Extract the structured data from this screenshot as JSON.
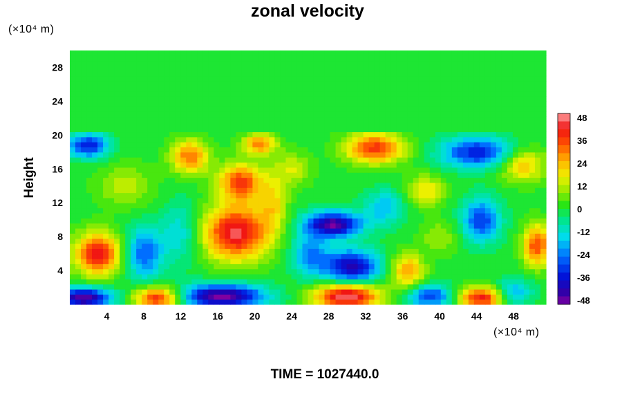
{
  "chart_data": {
    "type": "heatmap",
    "title": "zonal velocity",
    "ylabel": "Height",
    "x_unit": "(×10⁴ m)",
    "y_unit": "(×10⁴ m)",
    "footer": "TIME = 1027440.0",
    "xlim": [
      0,
      51.5
    ],
    "ylim": [
      0,
      30
    ],
    "x_ticks": [
      4,
      8,
      12,
      16,
      20,
      24,
      28,
      32,
      36,
      40,
      44,
      48
    ],
    "y_ticks": [
      4,
      8,
      12,
      16,
      20,
      24,
      28
    ],
    "colorbar": {
      "min": -48,
      "max": 48,
      "ticks": [
        48,
        36,
        24,
        12,
        0,
        -12,
        -24,
        -36,
        -48
      ]
    },
    "background_value": 0,
    "perturbed_region_top": 20.5,
    "features": [
      {
        "x": 2.0,
        "y": 18.8,
        "value": -34,
        "rx": 2.2,
        "ry": 1.4
      },
      {
        "x": 3.0,
        "y": 6.0,
        "value": 40,
        "rx": 2.5,
        "ry": 2.5
      },
      {
        "x": 8.0,
        "y": 6.0,
        "value": -26,
        "rx": 2.0,
        "ry": 3.0
      },
      {
        "x": 1.5,
        "y": 0.8,
        "value": -46,
        "rx": 3.0,
        "ry": 1.2
      },
      {
        "x": 9.5,
        "y": 0.8,
        "value": 40,
        "rx": 2.5,
        "ry": 1.3
      },
      {
        "x": 16.5,
        "y": 1.0,
        "value": -48,
        "rx": 4.5,
        "ry": 1.4
      },
      {
        "x": 18.0,
        "y": 8.5,
        "value": 44,
        "rx": 3.6,
        "ry": 3.2
      },
      {
        "x": 18.5,
        "y": 14.5,
        "value": 34,
        "rx": 2.5,
        "ry": 2.2
      },
      {
        "x": 13.0,
        "y": 17.5,
        "value": 30,
        "rx": 2.0,
        "ry": 2.0
      },
      {
        "x": 20.5,
        "y": 19.0,
        "value": 30,
        "rx": 1.8,
        "ry": 1.2
      },
      {
        "x": 12.0,
        "y": 8.5,
        "value": -14,
        "rx": 2.2,
        "ry": 3.5
      },
      {
        "x": 28.5,
        "y": 9.5,
        "value": -46,
        "rx": 3.0,
        "ry": 1.5
      },
      {
        "x": 30.5,
        "y": 4.5,
        "value": -40,
        "rx": 3.0,
        "ry": 2.0
      },
      {
        "x": 30.0,
        "y": 1.0,
        "value": 48,
        "rx": 3.5,
        "ry": 1.5
      },
      {
        "x": 33.0,
        "y": 18.5,
        "value": 36,
        "rx": 3.2,
        "ry": 1.8
      },
      {
        "x": 36.5,
        "y": 4.0,
        "value": 26,
        "rx": 1.8,
        "ry": 2.0
      },
      {
        "x": 39.0,
        "y": 1.0,
        "value": -30,
        "rx": 2.5,
        "ry": 1.3
      },
      {
        "x": 44.5,
        "y": 0.8,
        "value": 40,
        "rx": 2.5,
        "ry": 1.3
      },
      {
        "x": 44.0,
        "y": 18.0,
        "value": -34,
        "rx": 3.8,
        "ry": 1.8
      },
      {
        "x": 44.5,
        "y": 10.0,
        "value": -30,
        "rx": 2.0,
        "ry": 2.5
      },
      {
        "x": 50.5,
        "y": 7.0,
        "value": 34,
        "rx": 1.5,
        "ry": 2.5
      },
      {
        "x": 49.0,
        "y": 16.5,
        "value": 22,
        "rx": 2.5,
        "ry": 2.0
      },
      {
        "x": 48.0,
        "y": 1.5,
        "value": -20,
        "rx": 2.0,
        "ry": 1.5
      },
      {
        "x": 26.0,
        "y": 6.0,
        "value": -22,
        "rx": 2.0,
        "ry": 2.5
      },
      {
        "x": 34.0,
        "y": 11.5,
        "value": -18,
        "rx": 2.0,
        "ry": 2.0
      },
      {
        "x": 38.5,
        "y": 13.5,
        "value": 18,
        "rx": 2.0,
        "ry": 1.8
      },
      {
        "x": 22.0,
        "y": 12.0,
        "value": 16,
        "rx": 1.5,
        "ry": 3.0
      },
      {
        "x": 6.0,
        "y": 14.0,
        "value": 12,
        "rx": 3.0,
        "ry": 2.5
      },
      {
        "x": 24.0,
        "y": 16.0,
        "value": 14,
        "rx": 2.0,
        "ry": 2.0
      },
      {
        "x": 40.0,
        "y": 8.0,
        "value": 10,
        "rx": 2.0,
        "ry": 2.0
      }
    ]
  }
}
